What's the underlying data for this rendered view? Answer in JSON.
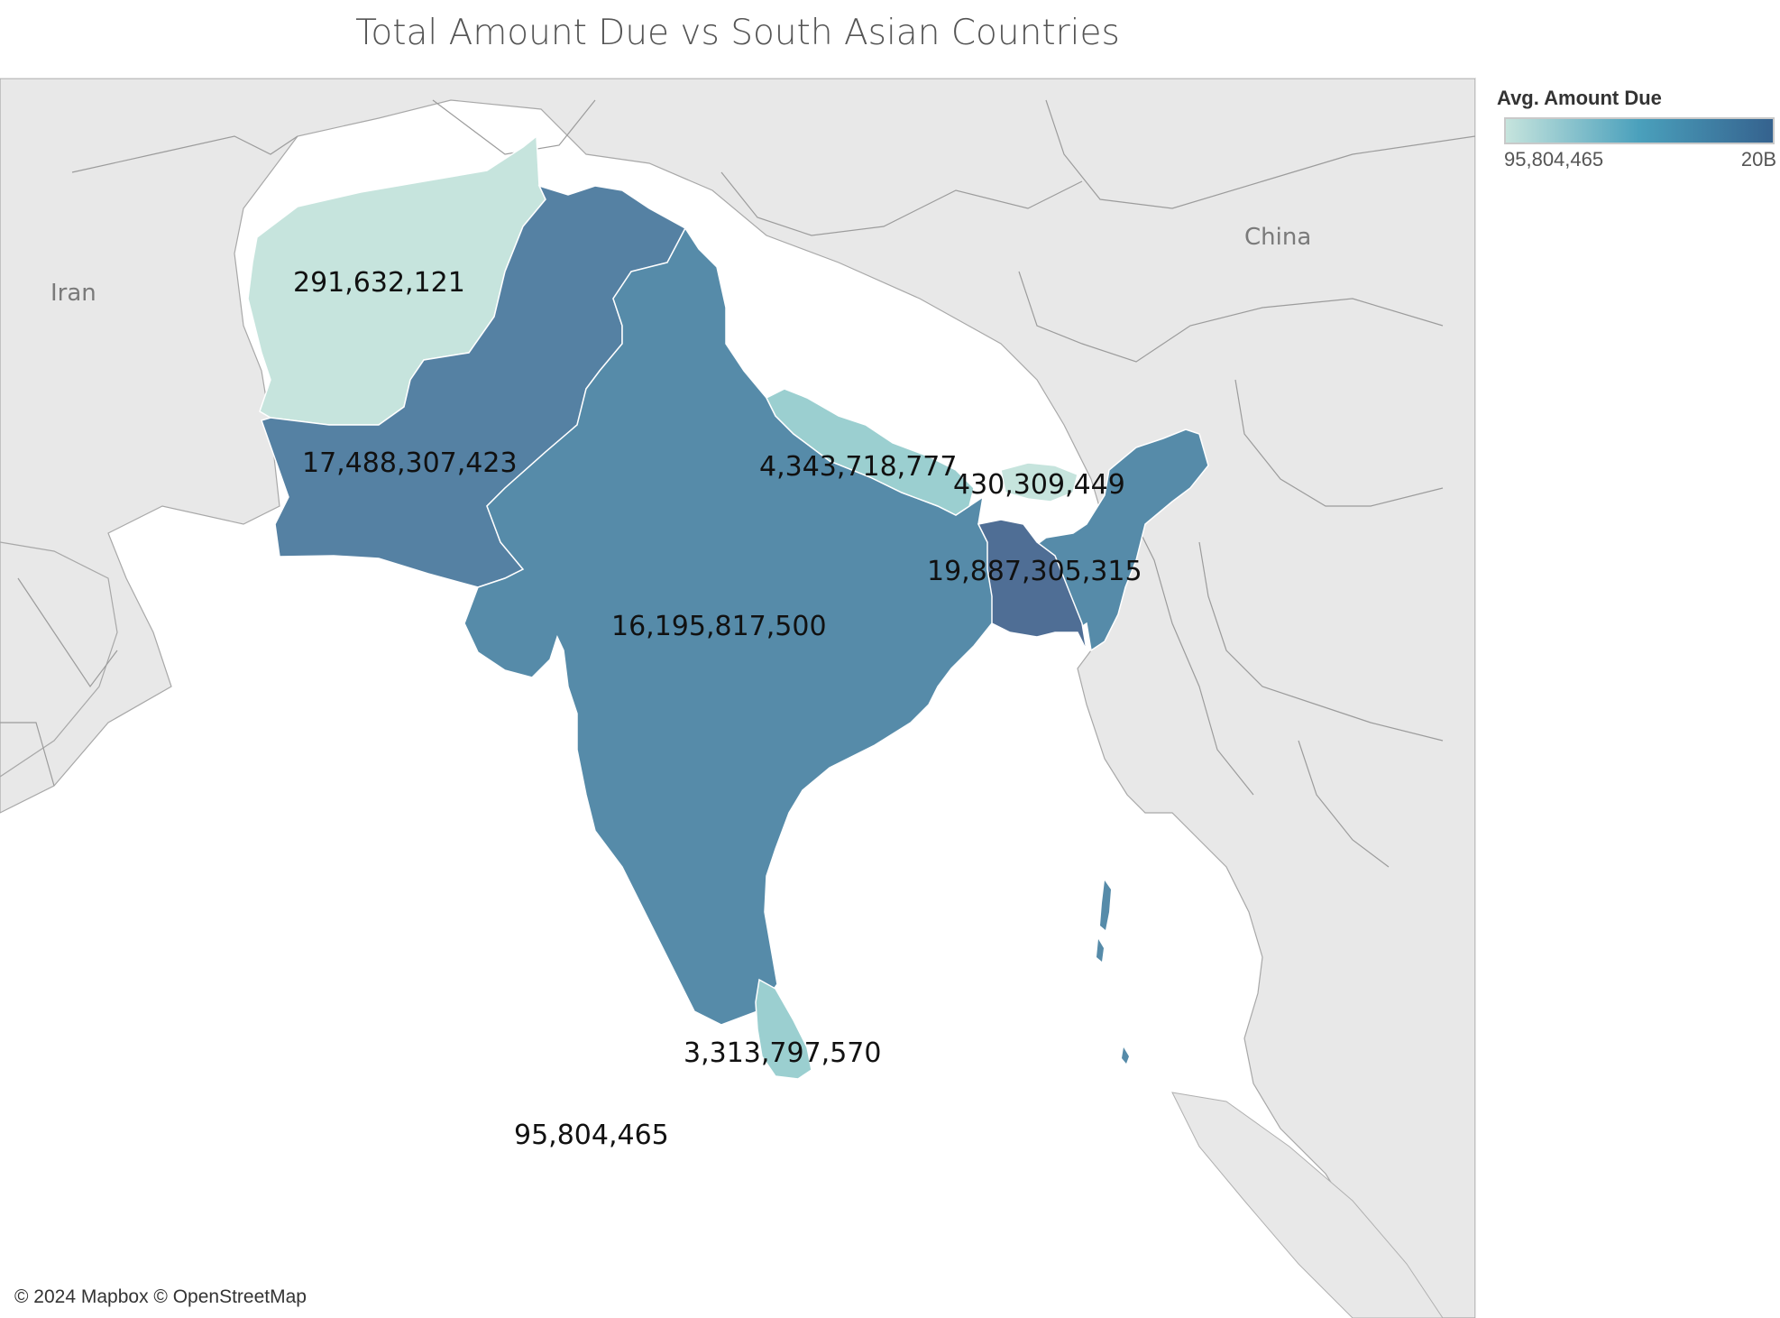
{
  "title": "Total Amount Due vs South Asian Countries",
  "legend": {
    "title": "Avg. Amount Due",
    "min_label": "95,804,465",
    "max_label": "20B",
    "min_value": 95804465,
    "max_value": 20000000000,
    "colors": [
      "#c6e4dd",
      "#4aa0bc",
      "#35628e"
    ]
  },
  "places": {
    "iran": "Iran",
    "china": "China"
  },
  "attribution": "© 2024 Mapbox © OpenStreetMap",
  "colors": {
    "water": "#ffffff",
    "land": "#e8e8e8",
    "border": "#9a9a9a"
  },
  "chart_data": {
    "type": "choropleth",
    "title": "Total Amount Due vs South Asian Countries",
    "values": [
      {
        "label": "291,632,121",
        "value": 291632121
      },
      {
        "label": "17,488,307,423",
        "value": 17488307423
      },
      {
        "label": "16,195,817,500",
        "value": 16195817500
      },
      {
        "label": "4,343,718,777",
        "value": 4343718777
      },
      {
        "label": "430,309,449",
        "value": 430309449
      },
      {
        "label": "19,887,305,315",
        "value": 19887305315
      },
      {
        "label": "3,313,797,570",
        "value": 3313797570
      },
      {
        "label": "95,804,465",
        "value": 95804465
      }
    ]
  }
}
